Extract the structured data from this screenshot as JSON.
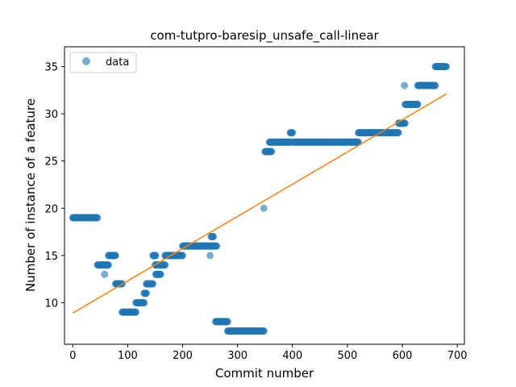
{
  "chart_data": {
    "type": "scatter",
    "title": "com-tutpro-baresip_unsafe_call-linear",
    "xlabel": "Commit number",
    "ylabel": "Number of instance of a feature",
    "xlim": [
      -15,
      713
    ],
    "ylim": [
      5.6,
      37.1
    ],
    "xticks": [
      0,
      100,
      200,
      300,
      400,
      500,
      600,
      700
    ],
    "yticks": [
      10,
      15,
      20,
      25,
      30,
      35
    ],
    "grid": false,
    "legend": {
      "placement": "top-left",
      "entries": [
        "data"
      ]
    },
    "colors": {
      "points": "#1f77b4",
      "fit_line": "#ff7f0e"
    },
    "series": [
      {
        "name": "data",
        "kind": "points",
        "segments": [
          {
            "x_start": 0,
            "x_end": 45,
            "y": 19
          },
          {
            "x_start": 45,
            "x_end": 65,
            "y": 14
          },
          {
            "x_start": 58,
            "x_end": 58,
            "y": 13
          },
          {
            "x_start": 65,
            "x_end": 78,
            "y": 15
          },
          {
            "x_start": 78,
            "x_end": 90,
            "y": 12
          },
          {
            "x_start": 90,
            "x_end": 115,
            "y": 9
          },
          {
            "x_start": 115,
            "x_end": 130,
            "y": 10
          },
          {
            "x_start": 130,
            "x_end": 134,
            "y": 11
          },
          {
            "x_start": 134,
            "x_end": 146,
            "y": 12
          },
          {
            "x_start": 146,
            "x_end": 151,
            "y": 15
          },
          {
            "x_start": 151,
            "x_end": 160,
            "y": 13
          },
          {
            "x_start": 150,
            "x_end": 168,
            "y": 14
          },
          {
            "x_start": 168,
            "x_end": 200,
            "y": 15
          },
          {
            "x_start": 200,
            "x_end": 262,
            "y": 16
          },
          {
            "x_start": 250,
            "x_end": 250,
            "y": 15
          },
          {
            "x_start": 252,
            "x_end": 256,
            "y": 17
          },
          {
            "x_start": 260,
            "x_end": 282,
            "y": 8
          },
          {
            "x_start": 282,
            "x_end": 348,
            "y": 7
          },
          {
            "x_start": 348,
            "x_end": 348,
            "y": 20
          },
          {
            "x_start": 350,
            "x_end": 362,
            "y": 26
          },
          {
            "x_start": 358,
            "x_end": 396,
            "y": 27
          },
          {
            "x_start": 396,
            "x_end": 400,
            "y": 28
          },
          {
            "x_start": 400,
            "x_end": 520,
            "y": 27
          },
          {
            "x_start": 520,
            "x_end": 593,
            "y": 28
          },
          {
            "x_start": 593,
            "x_end": 605,
            "y": 29
          },
          {
            "x_start": 604,
            "x_end": 604,
            "y": 33
          },
          {
            "x_start": 605,
            "x_end": 628,
            "y": 31
          },
          {
            "x_start": 628,
            "x_end": 660,
            "y": 33
          },
          {
            "x_start": 660,
            "x_end": 680,
            "y": 35
          }
        ]
      },
      {
        "name": "",
        "kind": "line",
        "x": [
          0,
          680
        ],
        "y": [
          8.9,
          32.1
        ]
      }
    ]
  }
}
